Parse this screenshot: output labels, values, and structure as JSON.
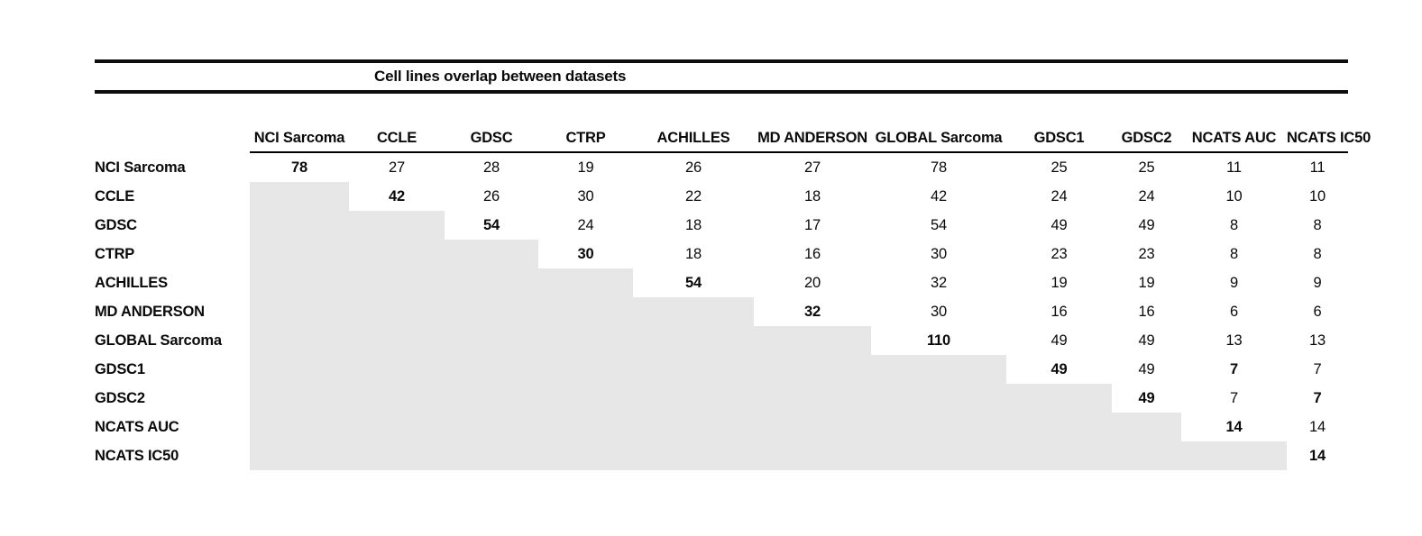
{
  "chart_data": {
    "type": "table",
    "title": "Cell lines overlap between datasets",
    "columns": [
      "NCI Sarcoma",
      "CCLE",
      "GDSC",
      "CTRP",
      "ACHILLES",
      "MD ANDERSON",
      "GLOBAL Sarcoma",
      "GDSC1",
      "GDSC2",
      "NCATS AUC",
      "NCATS IC50"
    ],
    "rows": [
      {
        "label": "NCI Sarcoma",
        "cells": [
          "78",
          "27",
          "28",
          "19",
          "26",
          "27",
          "78",
          "25",
          "25",
          "11",
          "11"
        ],
        "bold_cols": [
          0
        ]
      },
      {
        "label": "CCLE",
        "cells": [
          null,
          "42",
          "26",
          "30",
          "22",
          "18",
          "42",
          "24",
          "24",
          "10",
          "10"
        ],
        "bold_cols": [
          1
        ]
      },
      {
        "label": "GDSC",
        "cells": [
          null,
          null,
          "54",
          "24",
          "18",
          "17",
          "54",
          "49",
          "49",
          "8",
          "8"
        ],
        "bold_cols": [
          2
        ]
      },
      {
        "label": "CTRP",
        "cells": [
          null,
          null,
          null,
          "30",
          "18",
          "16",
          "30",
          "23",
          "23",
          "8",
          "8"
        ],
        "bold_cols": [
          3
        ]
      },
      {
        "label": "ACHILLES",
        "cells": [
          null,
          null,
          null,
          null,
          "54",
          "20",
          "32",
          "19",
          "19",
          "9",
          "9"
        ],
        "bold_cols": [
          4
        ]
      },
      {
        "label": "MD ANDERSON",
        "cells": [
          null,
          null,
          null,
          null,
          null,
          "32",
          "30",
          "16",
          "16",
          "6",
          "6"
        ],
        "bold_cols": [
          5
        ]
      },
      {
        "label": "GLOBAL Sarcoma",
        "cells": [
          null,
          null,
          null,
          null,
          null,
          null,
          "110",
          "49",
          "49",
          "13",
          "13"
        ],
        "bold_cols": [
          6
        ]
      },
      {
        "label": "GDSC1",
        "cells": [
          null,
          null,
          null,
          null,
          null,
          null,
          null,
          "49",
          "49",
          "7",
          "7"
        ],
        "bold_cols": [
          7,
          9
        ]
      },
      {
        "label": "GDSC2",
        "cells": [
          null,
          null,
          null,
          null,
          null,
          null,
          null,
          null,
          "49",
          "7",
          "7"
        ],
        "bold_cols": [
          8,
          10
        ]
      },
      {
        "label": "NCATS AUC",
        "cells": [
          null,
          null,
          null,
          null,
          null,
          null,
          null,
          null,
          null,
          "14",
          "14"
        ],
        "bold_cols": [
          9
        ]
      },
      {
        "label": "NCATS IC50",
        "cells": [
          null,
          null,
          null,
          null,
          null,
          null,
          null,
          null,
          null,
          null,
          "14"
        ],
        "bold_cols": [
          10
        ]
      }
    ],
    "layout_hints": {
      "shaded_region": "lower-triangle",
      "diagonal_bold": true
    },
    "colors": {
      "shaded_cell": "#e8e7e7",
      "rule": "#0d0d0d",
      "text": "#0a0a0a"
    }
  }
}
